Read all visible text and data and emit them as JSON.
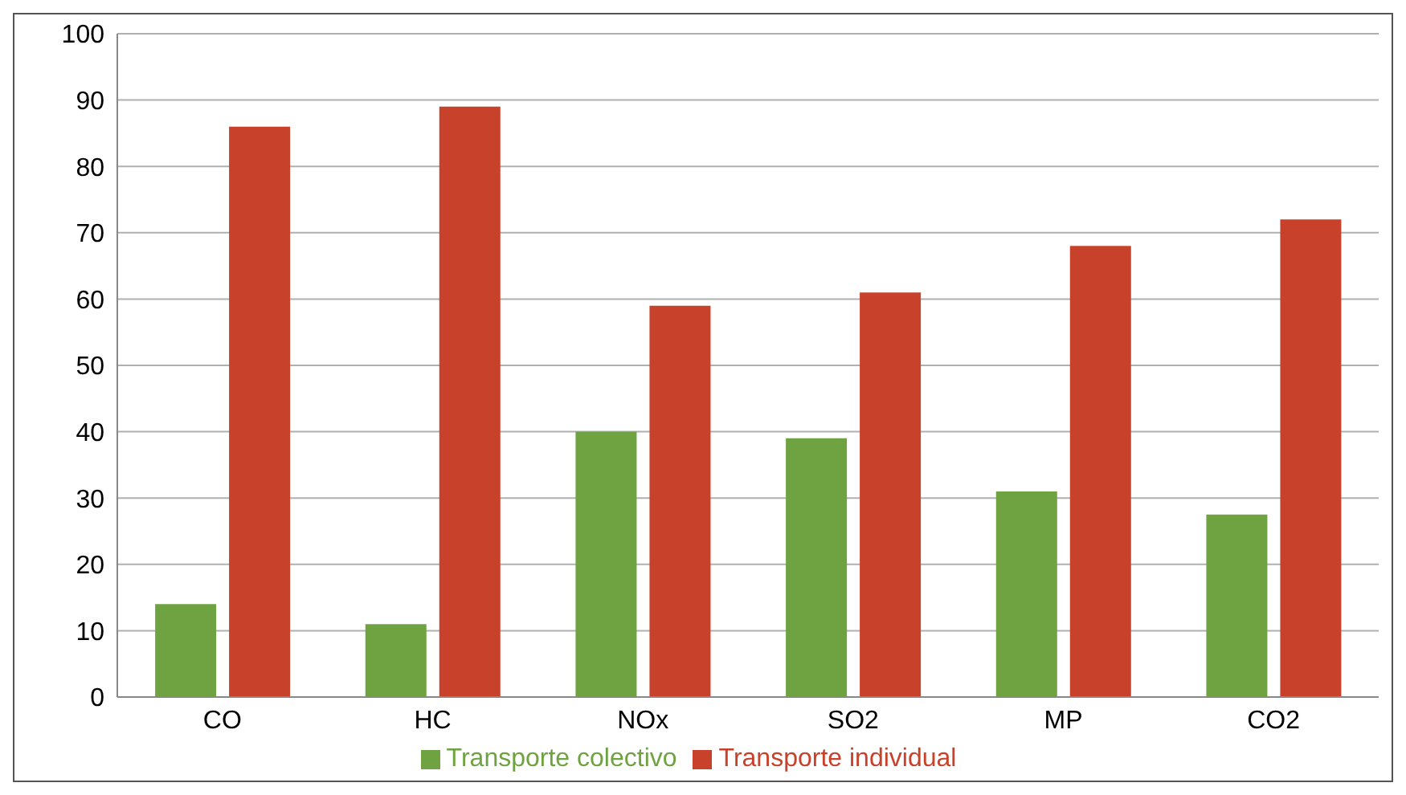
{
  "chart_data": {
    "type": "bar",
    "categories": [
      "CO",
      "HC",
      "NOx",
      "SO2",
      "MP",
      "CO2"
    ],
    "series": [
      {
        "name": "Transporte colectivo",
        "color": "#6fa342",
        "values": [
          14,
          11,
          40,
          39,
          31,
          27.5
        ]
      },
      {
        "name": "Transporte individual",
        "color": "#c8412a",
        "values": [
          86,
          89,
          59,
          61,
          68,
          72
        ]
      }
    ],
    "ylim": [
      0,
      100
    ],
    "yticks": [
      0,
      10,
      20,
      30,
      40,
      50,
      60,
      70,
      80,
      90,
      100
    ],
    "grid": "y",
    "legend": "bottom"
  }
}
